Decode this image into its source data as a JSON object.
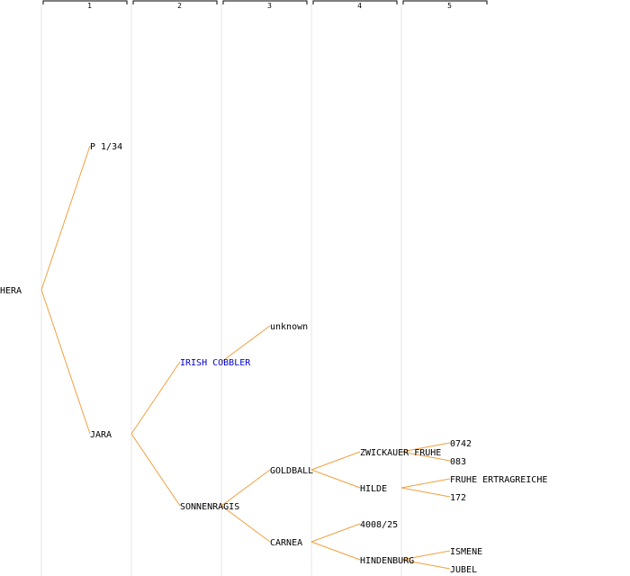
{
  "generations": [
    "1",
    "2",
    "3",
    "4",
    "5"
  ],
  "colors": {
    "edge": "#f0a040",
    "link": "#0000cc",
    "text": "#000000",
    "column_line": "#e6e6e6"
  },
  "nodes": [
    {
      "id": "hera",
      "label": "HERA",
      "gen": 0,
      "slot": 16,
      "link": false
    },
    {
      "id": "p134",
      "label": "P 1/34",
      "gen": 1,
      "slot": 8,
      "link": false,
      "parent": "hera"
    },
    {
      "id": "jara",
      "label": "JARA",
      "gen": 1,
      "slot": 24,
      "link": false,
      "parent": "hera"
    },
    {
      "id": "irish",
      "label": "IRISH COBBLER",
      "gen": 2,
      "slot": 20,
      "link": true,
      "parent": "jara"
    },
    {
      "id": "sonnenragis",
      "label": "SONNENRAGIS",
      "gen": 2,
      "slot": 28,
      "link": false,
      "parent": "jara"
    },
    {
      "id": "unknown",
      "label": "unknown",
      "gen": 3,
      "slot": 18,
      "link": false,
      "parent": "irish"
    },
    {
      "id": "goldball",
      "label": "GOLDBALL",
      "gen": 3,
      "slot": 26,
      "link": false,
      "parent": "sonnenragis"
    },
    {
      "id": "carnea",
      "label": "CARNEA",
      "gen": 3,
      "slot": 30,
      "link": false,
      "parent": "sonnenragis"
    },
    {
      "id": "zwickauer",
      "label": "ZWICKAUER FRUHE",
      "gen": 4,
      "slot": 25,
      "link": false,
      "parent": "goldball"
    },
    {
      "id": "hilde",
      "label": "HILDE",
      "gen": 4,
      "slot": 27,
      "link": false,
      "parent": "goldball"
    },
    {
      "id": "n4008",
      "label": "4008/25",
      "gen": 4,
      "slot": 29,
      "link": false,
      "parent": "carnea"
    },
    {
      "id": "hindenburg",
      "label": "HINDENBURG",
      "gen": 4,
      "slot": 31,
      "link": false,
      "parent": "carnea"
    },
    {
      "id": "n0742",
      "label": "0742",
      "gen": 5,
      "slot": 24.5,
      "link": false,
      "parent": "zwickauer"
    },
    {
      "id": "n083",
      "label": "083",
      "gen": 5,
      "slot": 25.5,
      "link": false,
      "parent": "zwickauer"
    },
    {
      "id": "fruhe",
      "label": "FRUHE ERTRAGREICHE",
      "gen": 5,
      "slot": 26.5,
      "link": false,
      "parent": "hilde"
    },
    {
      "id": "n172",
      "label": "172",
      "gen": 5,
      "slot": 27.5,
      "link": false,
      "parent": "hilde"
    },
    {
      "id": "ismene",
      "label": "ISMENE",
      "gen": 5,
      "slot": 30.5,
      "link": false,
      "parent": "hindenburg"
    },
    {
      "id": "jubel",
      "label": "JUBEL",
      "gen": 5,
      "slot": 31.5,
      "link": false,
      "parent": "hindenburg"
    }
  ]
}
